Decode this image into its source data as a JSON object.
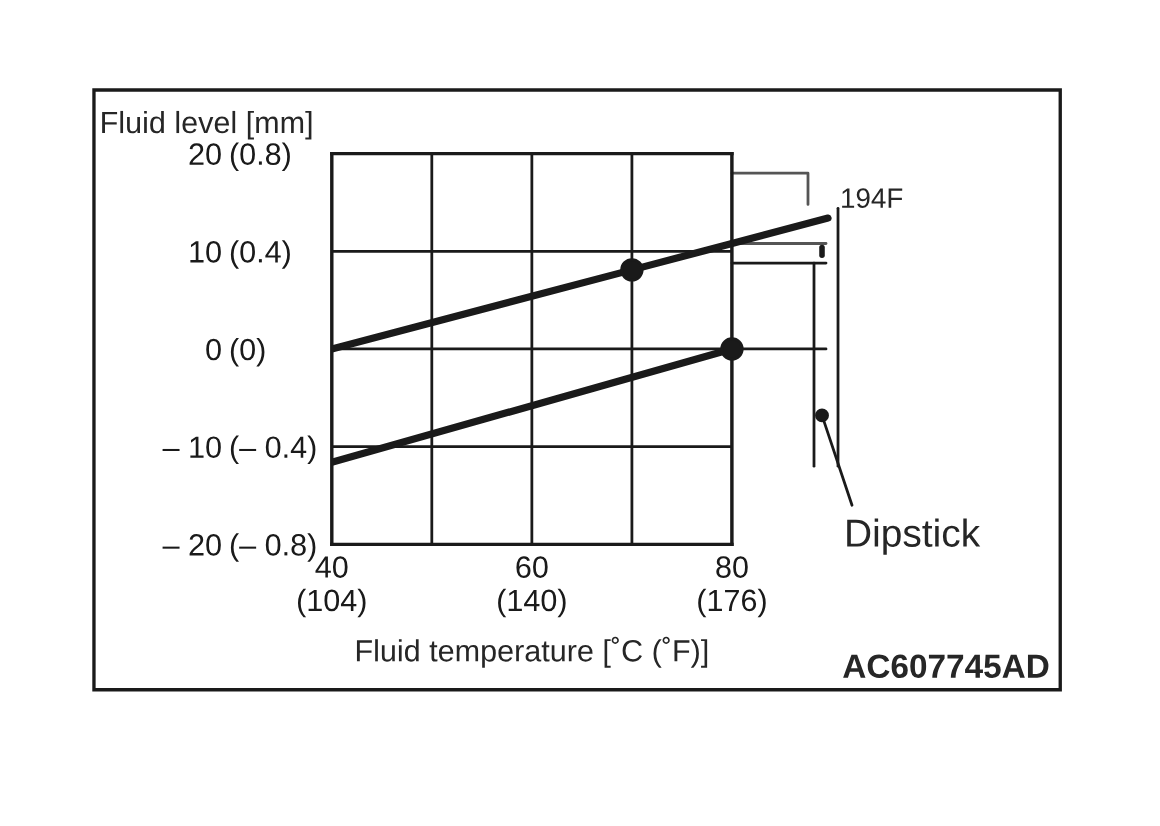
{
  "chart_data": {
    "type": "line",
    "title": "Fluid level [mm]",
    "xlabel": "Fluid temperature [˚C (˚F)]",
    "series": [
      {
        "color": "#1a1a1a",
        "x": [
          40,
          70,
          80
        ],
        "values": [
          0,
          8.1,
          10.8
        ]
      },
      {
        "color": "#1a1a1a",
        "x": [
          40,
          80
        ],
        "values": [
          -11.6,
          0
        ]
      },
      {
        "type": "scatter",
        "marker": "circle",
        "color": "#1a1a1a",
        "x": [
          70,
          80
        ],
        "values": [
          8.1,
          0
        ]
      }
    ],
    "xlim": [
      40,
      80
    ],
    "ylim": [
      -20,
      20
    ],
    "xticks": [
      40,
      {
        "value": 50,
        "label": null
      },
      60,
      {
        "value": 70,
        "label": null
      },
      80
    ],
    "x2lim": [
      104,
      176
    ],
    "x2ticks": [
      {
        "value": 104,
        "label": "(104)"
      },
      {
        "value": 140,
        "label": "(140)"
      },
      {
        "value": 176,
        "label": "(176)"
      }
    ],
    "yticks": [
      {
        "value": -20,
        "label": "– 20"
      },
      {
        "value": -10,
        "label": "– 10"
      },
      0,
      10,
      20
    ],
    "y2lim": [
      -0.8,
      0.8
    ],
    "y2ticks": [
      {
        "value": -0.8,
        "label": "(– 0.8)"
      },
      {
        "value": -0.4,
        "label": "(– 0.4)"
      },
      {
        "value": 0,
        "label": "(0)"
      },
      {
        "value": 0.4,
        "label": "(0.4)"
      },
      {
        "value": 0.8,
        "label": "(0.8)"
      }
    ],
    "grid": true,
    "line_style": "solid",
    "annotations": [
      "194F",
      "Dipstick",
      "AC607745AD"
    ]
  }
}
